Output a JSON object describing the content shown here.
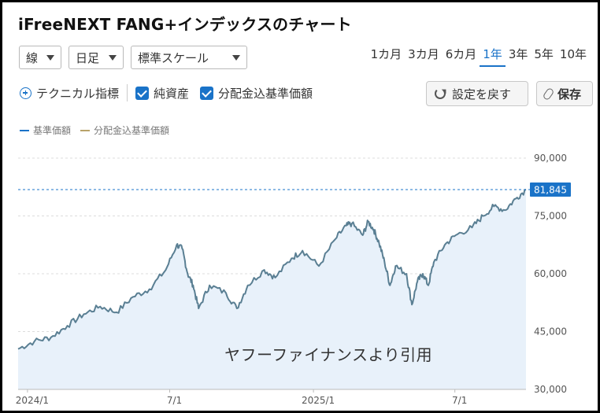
{
  "page_title": "iFreeNEXT FANG+インデックスのチャート",
  "controls": {
    "chart_type": "線",
    "interval": "日足",
    "scale": "標準スケール"
  },
  "periods": [
    {
      "label": "1カ月",
      "active": false
    },
    {
      "label": "3カ月",
      "active": false
    },
    {
      "label": "6カ月",
      "active": false
    },
    {
      "label": "1年",
      "active": true
    },
    {
      "label": "3年",
      "active": false
    },
    {
      "label": "5年",
      "active": false
    },
    {
      "label": "10年",
      "active": false
    }
  ],
  "toolbar": {
    "technical_label": "テクニカル指標",
    "net_assets_label": "純資産",
    "dividend_label": "分配金込基準価額",
    "reset_label": "設定を戻す",
    "save_label": "保存"
  },
  "watermark": "ヤフーファイナンスより引用",
  "colors": {
    "accent": "#1a73c8",
    "line": "#5a7f93",
    "fill": "#e8f1fa",
    "dividend_series": "#b8a26a"
  },
  "chart_data": {
    "type": "area",
    "legend": [
      {
        "name": "基準価額",
        "color": "#1a73c8"
      },
      {
        "name": "分配金込基準価額",
        "color": "#b8a26a"
      }
    ],
    "legend_position": "top-left",
    "y_ticks": [
      "90,000",
      "75,000",
      "60,000",
      "45,000",
      "30,000"
    ],
    "y_tick_values": [
      90000,
      75000,
      60000,
      45000,
      30000
    ],
    "ylim": [
      30000,
      90000
    ],
    "x_ticks": [
      "2024/1",
      "7/1",
      "2025/1",
      "7/1"
    ],
    "x_tick_dates": [
      "2024-01-01",
      "2024-07-01",
      "2025-01-01",
      "2025-07-01"
    ],
    "x_range": [
      "2023-12-20",
      "2025-09-30"
    ],
    "grid": true,
    "last_value": 81845,
    "last_value_label": "81,845",
    "series": [
      {
        "name": "基準価額",
        "points": [
          [
            "2023-12-20",
            40500
          ],
          [
            "2024-01-10",
            42500
          ],
          [
            "2024-01-31",
            43500
          ],
          [
            "2024-02-21",
            46500
          ],
          [
            "2024-03-13",
            49500
          ],
          [
            "2024-04-03",
            51500
          ],
          [
            "2024-04-24",
            50000
          ],
          [
            "2024-05-15",
            54000
          ],
          [
            "2024-06-05",
            56000
          ],
          [
            "2024-06-26",
            61000
          ],
          [
            "2024-07-10",
            67500
          ],
          [
            "2024-07-17",
            66500
          ],
          [
            "2024-07-24",
            60000
          ],
          [
            "2024-07-31",
            57000
          ],
          [
            "2024-08-07",
            51000
          ],
          [
            "2024-08-21",
            57000
          ],
          [
            "2024-09-11",
            55000
          ],
          [
            "2024-09-25",
            51000
          ],
          [
            "2024-10-09",
            57000
          ],
          [
            "2024-10-30",
            61000
          ],
          [
            "2024-11-13",
            59000
          ],
          [
            "2024-12-04",
            64000
          ],
          [
            "2024-12-18",
            66000
          ],
          [
            "2025-01-08",
            62000
          ],
          [
            "2025-01-29",
            69000
          ],
          [
            "2025-02-12",
            72500
          ],
          [
            "2025-02-19",
            73000
          ],
          [
            "2025-03-05",
            70000
          ],
          [
            "2025-03-12",
            73500
          ],
          [
            "2025-03-19",
            71500
          ],
          [
            "2025-03-26",
            68000
          ],
          [
            "2025-04-02",
            63000
          ],
          [
            "2025-04-09",
            57000
          ],
          [
            "2025-04-16",
            62000
          ],
          [
            "2025-04-30",
            60000
          ],
          [
            "2025-05-07",
            52000
          ],
          [
            "2025-05-14",
            58000
          ],
          [
            "2025-05-21",
            60000
          ],
          [
            "2025-05-28",
            57000
          ],
          [
            "2025-06-04",
            63000
          ],
          [
            "2025-06-18",
            67500
          ],
          [
            "2025-07-02",
            70000
          ],
          [
            "2025-07-23",
            72000
          ],
          [
            "2025-08-06",
            75000
          ],
          [
            "2025-08-20",
            77500
          ],
          [
            "2025-09-03",
            76500
          ],
          [
            "2025-09-17",
            79500
          ],
          [
            "2025-09-30",
            81845
          ]
        ]
      }
    ]
  }
}
